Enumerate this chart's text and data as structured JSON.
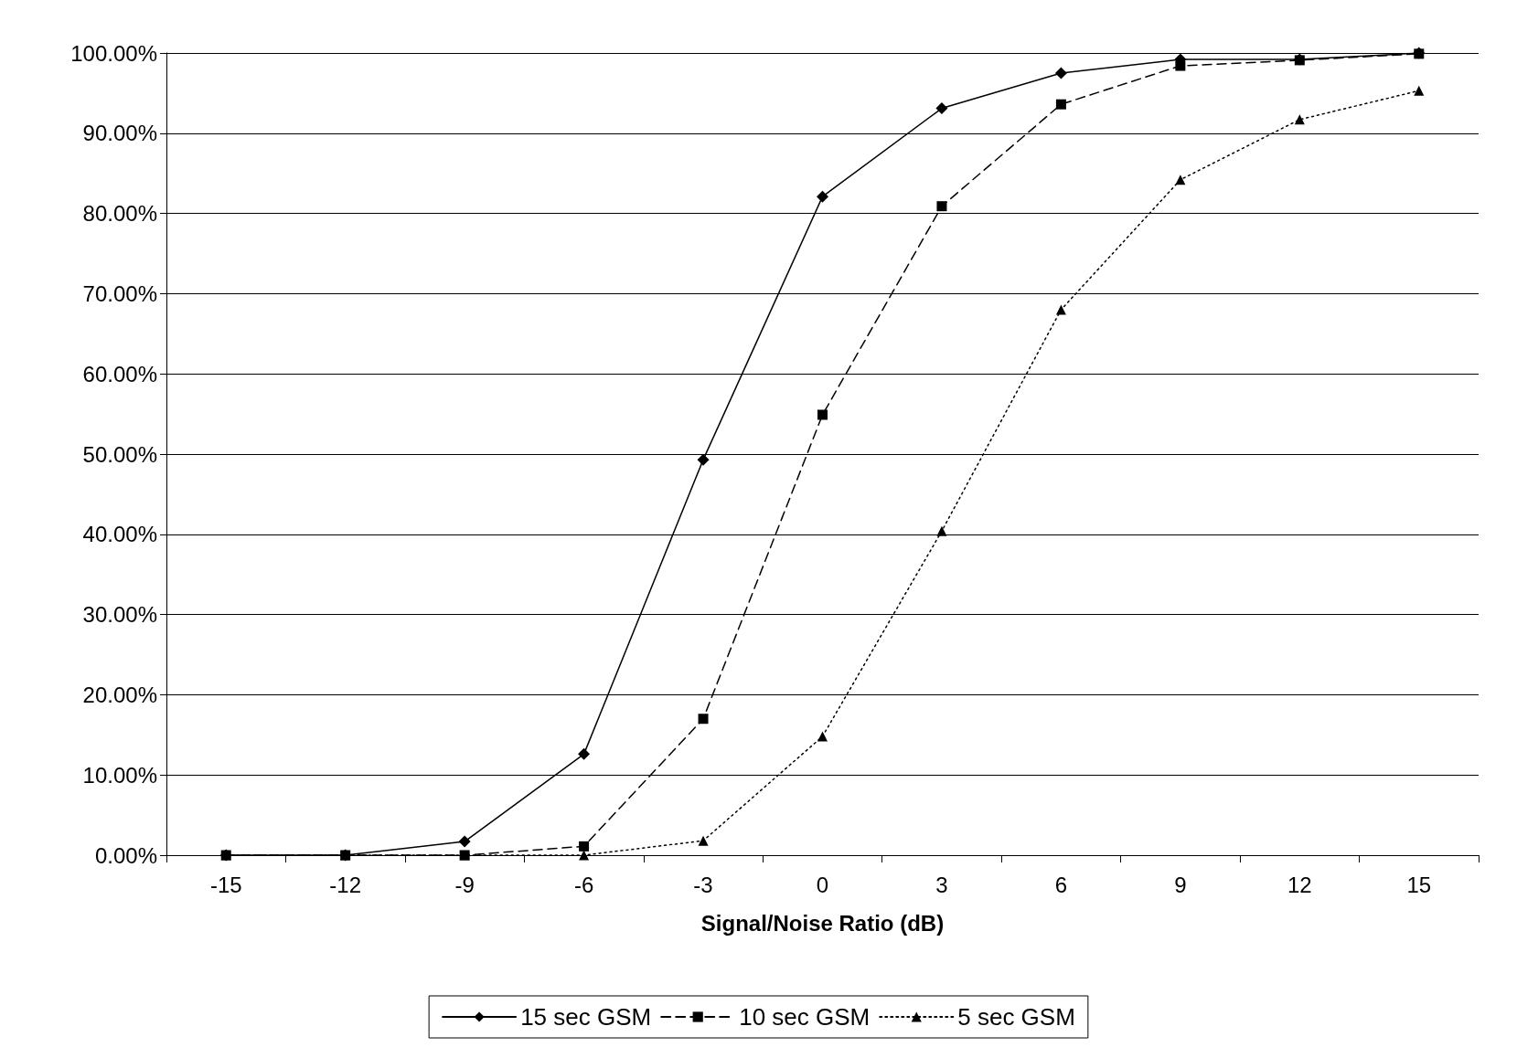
{
  "chart_data": {
    "type": "line",
    "xlabel": "Signal/Noise Ratio (dB)",
    "categories": [
      "-15",
      "-12",
      "-9",
      "-6",
      "-3",
      "0",
      "3",
      "6",
      "9",
      "12",
      "15"
    ],
    "series": [
      {
        "name": "15 sec GSM",
        "color": "#000000",
        "marker": "diamond",
        "line_style": "solid",
        "values": [
          0,
          0,
          1.7,
          12.6,
          49.3,
          82.1,
          93.1,
          97.5,
          99.2,
          99.2,
          100
        ]
      },
      {
        "name": "10 sec GSM",
        "color": "#000000",
        "marker": "square",
        "line_style": "dashed",
        "values": [
          0,
          0,
          0,
          1.1,
          17.0,
          54.9,
          80.9,
          93.6,
          98.4,
          99.1,
          99.9
        ]
      },
      {
        "name": "5 sec GSM",
        "color": "#000000",
        "marker": "triangle",
        "line_style": "dotted",
        "values": [
          0,
          0,
          0,
          0,
          1.8,
          14.8,
          40.4,
          68.0,
          84.2,
          91.7,
          95.3
        ]
      }
    ],
    "ylim": [
      0,
      100
    ],
    "yticks": [
      {
        "value": 0,
        "label": "0.00%"
      },
      {
        "value": 10,
        "label": "10.00%"
      },
      {
        "value": 20,
        "label": "20.00%"
      },
      {
        "value": 30,
        "label": "30.00%"
      },
      {
        "value": 40,
        "label": "40.00%"
      },
      {
        "value": 50,
        "label": "50.00%"
      },
      {
        "value": 60,
        "label": "60.00%"
      },
      {
        "value": 70,
        "label": "70.00%"
      },
      {
        "value": 80,
        "label": "80.00%"
      },
      {
        "value": 90,
        "label": "90.00%"
      },
      {
        "value": 100,
        "label": "100.00%"
      }
    ],
    "grid": "y",
    "legend": "bottom"
  }
}
